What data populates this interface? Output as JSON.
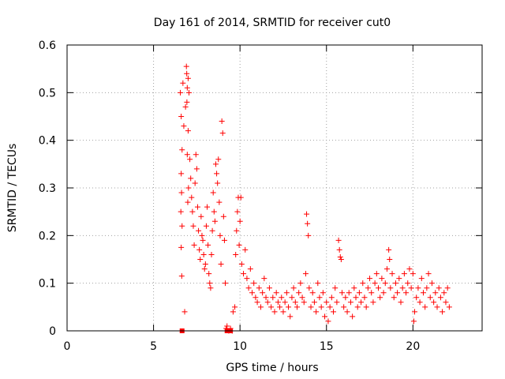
{
  "chart_data": {
    "type": "scatter",
    "title": "Day 161 of 2014, SRMTID for receiver cut0",
    "xlabel": "GPS time / hours",
    "ylabel": "SRMTID / TECUs",
    "xlim": [
      0,
      24
    ],
    "ylim": [
      0,
      0.6
    ],
    "grid": true,
    "marker": "+",
    "color": "#ff0000",
    "x_ticks": [
      "0",
      "5",
      "10",
      "15",
      "20"
    ],
    "x_tick_values": [
      0,
      5,
      10,
      15,
      20
    ],
    "y_ticks": [
      "0",
      "0.1",
      "0.2",
      "0.3",
      "0.4",
      "0.5",
      "0.6"
    ],
    "y_tick_values": [
      0,
      0.1,
      0.2,
      0.3,
      0.4,
      0.5,
      0.6
    ],
    "series": [
      {
        "name": "SRMTID",
        "points": [
          [
            6.55,
            0.5
          ],
          [
            6.6,
            0.45
          ],
          [
            6.65,
            0.38
          ],
          [
            6.6,
            0.33
          ],
          [
            6.62,
            0.29
          ],
          [
            6.58,
            0.25
          ],
          [
            6.65,
            0.22
          ],
          [
            6.6,
            0.175
          ],
          [
            6.63,
            0.115
          ],
          [
            6.7,
            0.52
          ],
          [
            6.75,
            0.43
          ],
          [
            6.8,
            0.04
          ],
          [
            6.85,
            0.47
          ],
          [
            6.9,
            0.555
          ],
          [
            6.92,
            0.54
          ],
          [
            6.95,
            0.51
          ],
          [
            6.93,
            0.48
          ],
          [
            7.0,
            0.53
          ],
          [
            7.05,
            0.5
          ],
          [
            7.0,
            0.42
          ],
          [
            6.95,
            0.37
          ],
          [
            7.02,
            0.3
          ],
          [
            6.98,
            0.27
          ],
          [
            7.1,
            0.36
          ],
          [
            7.15,
            0.32
          ],
          [
            7.2,
            0.28
          ],
          [
            7.25,
            0.25
          ],
          [
            7.3,
            0.22
          ],
          [
            7.35,
            0.18
          ],
          [
            7.4,
            0.31
          ],
          [
            7.45,
            0.37
          ],
          [
            7.5,
            0.34
          ],
          [
            7.55,
            0.26
          ],
          [
            7.6,
            0.21
          ],
          [
            7.65,
            0.17
          ],
          [
            7.7,
            0.15
          ],
          [
            7.75,
            0.24
          ],
          [
            7.8,
            0.2
          ],
          [
            7.85,
            0.19
          ],
          [
            7.9,
            0.16
          ],
          [
            7.95,
            0.13
          ],
          [
            8.0,
            0.14
          ],
          [
            8.05,
            0.22
          ],
          [
            8.1,
            0.26
          ],
          [
            8.15,
            0.18
          ],
          [
            8.2,
            0.12
          ],
          [
            8.25,
            0.1
          ],
          [
            8.3,
            0.09
          ],
          [
            8.35,
            0.16
          ],
          [
            8.4,
            0.21
          ],
          [
            8.45,
            0.29
          ],
          [
            8.5,
            0.25
          ],
          [
            8.55,
            0.23
          ],
          [
            8.6,
            0.35
          ],
          [
            8.65,
            0.33
          ],
          [
            8.7,
            0.31
          ],
          [
            8.75,
            0.36
          ],
          [
            8.8,
            0.27
          ],
          [
            8.85,
            0.2
          ],
          [
            8.9,
            0.14
          ],
          [
            8.95,
            0.44
          ],
          [
            9.0,
            0.415
          ],
          [
            9.05,
            0.24
          ],
          [
            9.1,
            0.19
          ],
          [
            9.15,
            0.1
          ],
          [
            9.2,
            0.005
          ],
          [
            9.25,
            0.01
          ],
          [
            9.35,
            0.0
          ],
          [
            9.45,
            0.005
          ],
          [
            9.55,
            0.0
          ],
          [
            9.6,
            0.04
          ],
          [
            9.7,
            0.05
          ],
          [
            9.75,
            0.16
          ],
          [
            9.8,
            0.21
          ],
          [
            9.85,
            0.25
          ],
          [
            9.9,
            0.28
          ],
          [
            9.95,
            0.18
          ],
          [
            10.0,
            0.23
          ],
          [
            10.05,
            0.28
          ],
          [
            10.1,
            0.14
          ],
          [
            10.2,
            0.12
          ],
          [
            10.3,
            0.17
          ],
          [
            10.4,
            0.11
          ],
          [
            10.5,
            0.09
          ],
          [
            10.6,
            0.13
          ],
          [
            10.7,
            0.08
          ],
          [
            10.8,
            0.1
          ],
          [
            10.9,
            0.07
          ],
          [
            11.0,
            0.06
          ],
          [
            11.1,
            0.09
          ],
          [
            11.2,
            0.05
          ],
          [
            11.3,
            0.08
          ],
          [
            11.4,
            0.11
          ],
          [
            11.5,
            0.07
          ],
          [
            11.6,
            0.06
          ],
          [
            11.7,
            0.09
          ],
          [
            11.8,
            0.05
          ],
          [
            11.9,
            0.07
          ],
          [
            12.0,
            0.04
          ],
          [
            12.1,
            0.08
          ],
          [
            12.2,
            0.06
          ],
          [
            12.3,
            0.05
          ],
          [
            12.4,
            0.07
          ],
          [
            12.5,
            0.04
          ],
          [
            12.6,
            0.06
          ],
          [
            12.7,
            0.08
          ],
          [
            12.8,
            0.05
          ],
          [
            12.9,
            0.03
          ],
          [
            13.0,
            0.07
          ],
          [
            13.1,
            0.09
          ],
          [
            13.2,
            0.06
          ],
          [
            13.3,
            0.05
          ],
          [
            13.4,
            0.08
          ],
          [
            13.5,
            0.1
          ],
          [
            13.6,
            0.07
          ],
          [
            13.7,
            0.06
          ],
          [
            13.8,
            0.12
          ],
          [
            13.85,
            0.245
          ],
          [
            13.9,
            0.225
          ],
          [
            13.95,
            0.2
          ],
          [
            14.0,
            0.09
          ],
          [
            14.1,
            0.05
          ],
          [
            14.2,
            0.08
          ],
          [
            14.3,
            0.06
          ],
          [
            14.4,
            0.04
          ],
          [
            14.5,
            0.1
          ],
          [
            14.6,
            0.07
          ],
          [
            14.7,
            0.05
          ],
          [
            14.8,
            0.08
          ],
          [
            14.9,
            0.03
          ],
          [
            15.0,
            0.06
          ],
          [
            15.1,
            0.02
          ],
          [
            15.2,
            0.05
          ],
          [
            15.3,
            0.07
          ],
          [
            15.4,
            0.04
          ],
          [
            15.5,
            0.09
          ],
          [
            15.6,
            0.06
          ],
          [
            15.7,
            0.19
          ],
          [
            15.75,
            0.17
          ],
          [
            15.8,
            0.155
          ],
          [
            15.85,
            0.15
          ],
          [
            15.9,
            0.08
          ],
          [
            16.0,
            0.05
          ],
          [
            16.1,
            0.07
          ],
          [
            16.2,
            0.04
          ],
          [
            16.3,
            0.08
          ],
          [
            16.4,
            0.06
          ],
          [
            16.5,
            0.03
          ],
          [
            16.6,
            0.09
          ],
          [
            16.7,
            0.07
          ],
          [
            16.8,
            0.05
          ],
          [
            16.9,
            0.08
          ],
          [
            17.0,
            0.06
          ],
          [
            17.1,
            0.1
          ],
          [
            17.2,
            0.07
          ],
          [
            17.3,
            0.05
          ],
          [
            17.4,
            0.09
          ],
          [
            17.5,
            0.11
          ],
          [
            17.6,
            0.08
          ],
          [
            17.7,
            0.06
          ],
          [
            17.8,
            0.1
          ],
          [
            17.9,
            0.12
          ],
          [
            18.0,
            0.09
          ],
          [
            18.1,
            0.07
          ],
          [
            18.2,
            0.11
          ],
          [
            18.3,
            0.08
          ],
          [
            18.4,
            0.1
          ],
          [
            18.5,
            0.13
          ],
          [
            18.6,
            0.17
          ],
          [
            18.65,
            0.15
          ],
          [
            18.7,
            0.09
          ],
          [
            18.8,
            0.12
          ],
          [
            18.9,
            0.07
          ],
          [
            19.0,
            0.1
          ],
          [
            19.1,
            0.08
          ],
          [
            19.2,
            0.11
          ],
          [
            19.3,
            0.06
          ],
          [
            19.4,
            0.09
          ],
          [
            19.5,
            0.12
          ],
          [
            19.6,
            0.08
          ],
          [
            19.7,
            0.1
          ],
          [
            19.8,
            0.13
          ],
          [
            19.9,
            0.09
          ],
          [
            20.0,
            0.12
          ],
          [
            20.05,
            0.02
          ],
          [
            20.1,
            0.04
          ],
          [
            20.2,
            0.07
          ],
          [
            20.3,
            0.09
          ],
          [
            20.4,
            0.06
          ],
          [
            20.5,
            0.11
          ],
          [
            20.6,
            0.08
          ],
          [
            20.7,
            0.05
          ],
          [
            20.8,
            0.09
          ],
          [
            20.9,
            0.12
          ],
          [
            21.0,
            0.07
          ],
          [
            21.1,
            0.1
          ],
          [
            21.2,
            0.06
          ],
          [
            21.3,
            0.08
          ],
          [
            21.4,
            0.05
          ],
          [
            21.5,
            0.09
          ],
          [
            21.6,
            0.07
          ],
          [
            21.7,
            0.04
          ],
          [
            21.8,
            0.08
          ],
          [
            21.9,
            0.06
          ],
          [
            22.0,
            0.09
          ],
          [
            22.1,
            0.05
          ]
        ]
      }
    ],
    "square_markers": [
      [
        6.65,
        0.0
      ],
      [
        9.25,
        0.0
      ],
      [
        9.45,
        0.0
      ]
    ]
  }
}
